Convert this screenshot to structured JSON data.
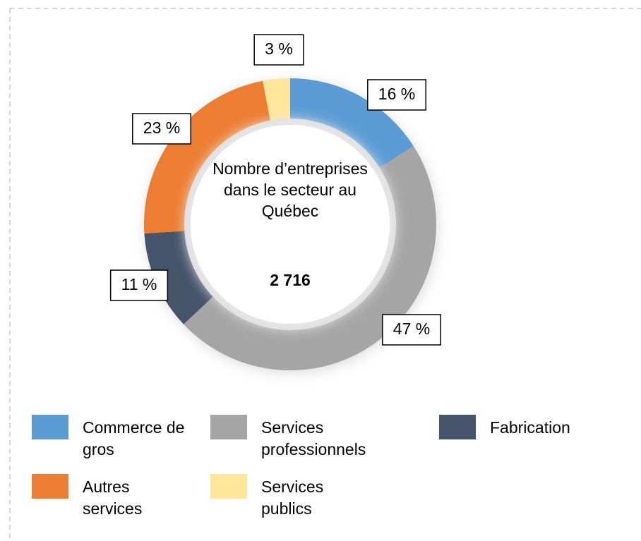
{
  "chart_data": {
    "type": "donut",
    "center_label": "Nombre d’entreprises dans le secteur au Québec",
    "total": {
      "value": 2716,
      "label": "2 716"
    },
    "categories": [
      "Commerce de gros",
      "Services professionnels",
      "Fabrication",
      "Autres services",
      "Services publics"
    ],
    "values": [
      16,
      47,
      11,
      23,
      3
    ],
    "value_labels": [
      "16 %",
      "47 %",
      "11 %",
      "23 %",
      "3 %"
    ],
    "colors": [
      "#5b9bd5",
      "#a5a5a5",
      "#44546a",
      "#ed7d31",
      "#ffe699"
    ]
  }
}
